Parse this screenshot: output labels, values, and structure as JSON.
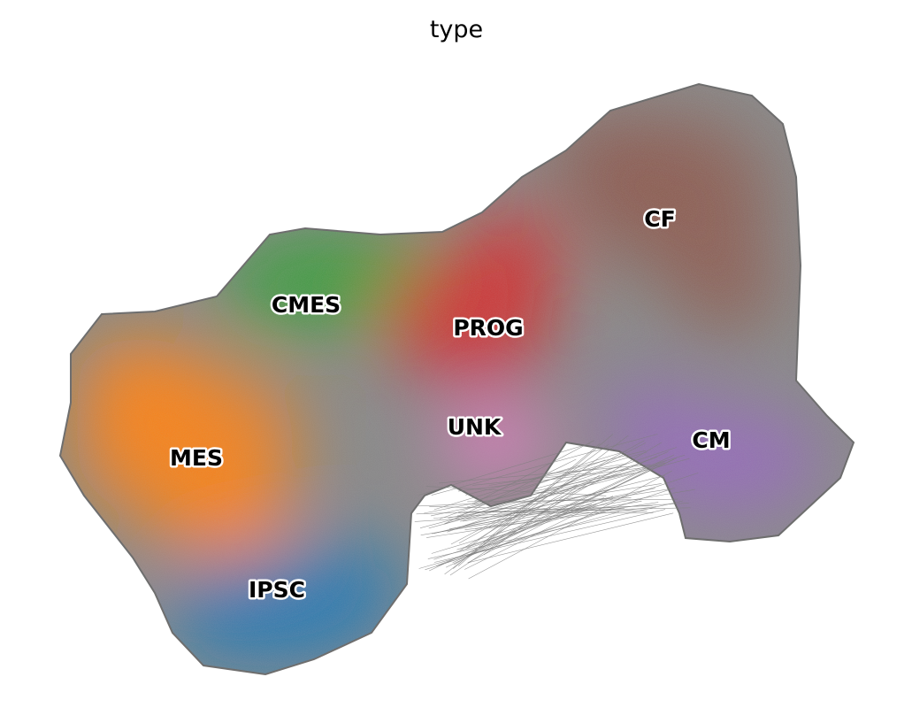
{
  "chart_data": {
    "type": "scatter",
    "title": "type",
    "xlabel": "",
    "ylabel": "",
    "axes_visible": false,
    "grid": false,
    "legend": "on data",
    "edge_color": "#808080",
    "categories": [
      {
        "name": "IPSC",
        "color": "#1f77b4"
      },
      {
        "name": "MES",
        "color": "#ff7f0e"
      },
      {
        "name": "CMES",
        "color": "#2ca02c"
      },
      {
        "name": "PROG",
        "color": "#d62728"
      },
      {
        "name": "CM",
        "color": "#9467bd"
      },
      {
        "name": "CF",
        "color": "#8c564b"
      },
      {
        "name": "UNK",
        "color": "#e377c2"
      }
    ]
  }
}
